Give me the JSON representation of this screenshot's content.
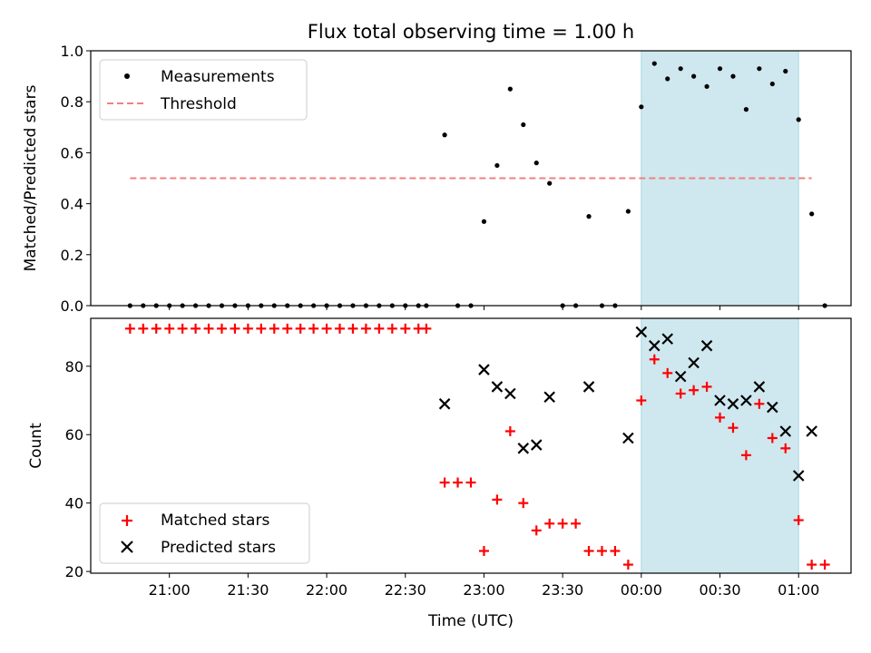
{
  "chart_data": [
    {
      "type": "scatter",
      "title": "Flux total observing time = 1.00 h",
      "ylabel": "Matched/Predicted stars",
      "xlabel": "",
      "ylim": [
        0,
        1.0
      ],
      "yticks": [
        "0.0",
        "0.2",
        "0.4",
        "0.6",
        "0.8",
        "1.0"
      ],
      "legend_position": "upper-left",
      "grid": false,
      "shaded_interval": [
        "00:00",
        "01:00"
      ],
      "shaded_color": "#cfe8ef",
      "series": [
        {
          "name": "Measurements",
          "marker": "dot",
          "color": "#000000",
          "points": [
            [
              "20:45",
              0.0
            ],
            [
              "20:50",
              0.0
            ],
            [
              "20:55",
              0.0
            ],
            [
              "21:00",
              0.0
            ],
            [
              "21:05",
              0.0
            ],
            [
              "21:10",
              0.0
            ],
            [
              "21:15",
              0.0
            ],
            [
              "21:20",
              0.0
            ],
            [
              "21:25",
              0.0
            ],
            [
              "21:30",
              0.0
            ],
            [
              "21:35",
              0.0
            ],
            [
              "21:40",
              0.0
            ],
            [
              "21:45",
              0.0
            ],
            [
              "21:50",
              0.0
            ],
            [
              "21:55",
              0.0
            ],
            [
              "22:00",
              0.0
            ],
            [
              "22:05",
              0.0
            ],
            [
              "22:10",
              0.0
            ],
            [
              "22:15",
              0.0
            ],
            [
              "22:20",
              0.0
            ],
            [
              "22:25",
              0.0
            ],
            [
              "22:30",
              0.0
            ],
            [
              "22:35",
              0.0
            ],
            [
              "22:38",
              0.0
            ],
            [
              "22:45",
              0.67
            ],
            [
              "22:50",
              0.0
            ],
            [
              "22:55",
              0.0
            ],
            [
              "23:00",
              0.33
            ],
            [
              "23:05",
              0.55
            ],
            [
              "23:10",
              0.85
            ],
            [
              "23:15",
              0.71
            ],
            [
              "23:20",
              0.56
            ],
            [
              "23:25",
              0.48
            ],
            [
              "23:30",
              0.0
            ],
            [
              "23:35",
              0.0
            ],
            [
              "23:40",
              0.35
            ],
            [
              "23:45",
              0.0
            ],
            [
              "23:50",
              0.0
            ],
            [
              "23:55",
              0.37
            ],
            [
              "00:00",
              0.78
            ],
            [
              "00:05",
              0.95
            ],
            [
              "00:10",
              0.89
            ],
            [
              "00:15",
              0.93
            ],
            [
              "00:20",
              0.9
            ],
            [
              "00:25",
              0.86
            ],
            [
              "00:30",
              0.93
            ],
            [
              "00:35",
              0.9
            ],
            [
              "00:40",
              0.77
            ],
            [
              "00:45",
              0.93
            ],
            [
              "00:50",
              0.87
            ],
            [
              "00:55",
              0.92
            ],
            [
              "01:00",
              0.73
            ],
            [
              "01:05",
              0.36
            ],
            [
              "01:10",
              0.0
            ]
          ]
        },
        {
          "name": "Threshold",
          "marker": "dashed-line",
          "color": "#f08080",
          "x": [
            "20:45",
            "01:05"
          ],
          "values": [
            0.5,
            0.5
          ]
        }
      ]
    },
    {
      "type": "scatter",
      "title": "",
      "ylabel": "Count",
      "xlabel": "Time (UTC)",
      "ylim": [
        19.5,
        94
      ],
      "yticks": [
        "20",
        "40",
        "60",
        "80"
      ],
      "xticks": [
        "21:00",
        "21:30",
        "22:00",
        "22:30",
        "23:00",
        "23:30",
        "00:00",
        "00:30",
        "01:00"
      ],
      "xlim": [
        "20:30",
        "01:20"
      ],
      "legend_position": "lower-left",
      "grid": false,
      "shaded_interval": [
        "00:00",
        "01:00"
      ],
      "shaded_color": "#cfe8ef",
      "series": [
        {
          "name": "Matched stars",
          "marker": "plus",
          "color": "#ff0000",
          "points": [
            [
              "20:45",
              91
            ],
            [
              "20:50",
              91
            ],
            [
              "20:55",
              91
            ],
            [
              "21:00",
              91
            ],
            [
              "21:05",
              91
            ],
            [
              "21:10",
              91
            ],
            [
              "21:15",
              91
            ],
            [
              "21:20",
              91
            ],
            [
              "21:25",
              91
            ],
            [
              "21:30",
              91
            ],
            [
              "21:35",
              91
            ],
            [
              "21:40",
              91
            ],
            [
              "21:45",
              91
            ],
            [
              "21:50",
              91
            ],
            [
              "21:55",
              91
            ],
            [
              "22:00",
              91
            ],
            [
              "22:05",
              91
            ],
            [
              "22:10",
              91
            ],
            [
              "22:15",
              91
            ],
            [
              "22:20",
              91
            ],
            [
              "22:25",
              91
            ],
            [
              "22:30",
              91
            ],
            [
              "22:35",
              91
            ],
            [
              "22:38",
              91
            ],
            [
              "22:45",
              46
            ],
            [
              "22:50",
              46
            ],
            [
              "22:55",
              46
            ],
            [
              "23:00",
              26
            ],
            [
              "23:05",
              41
            ],
            [
              "23:10",
              61
            ],
            [
              "23:15",
              40
            ],
            [
              "23:20",
              32
            ],
            [
              "23:25",
              34
            ],
            [
              "23:30",
              34
            ],
            [
              "23:35",
              34
            ],
            [
              "23:40",
              26
            ],
            [
              "23:45",
              26
            ],
            [
              "23:50",
              26
            ],
            [
              "23:55",
              22
            ],
            [
              "00:00",
              70
            ],
            [
              "00:05",
              82
            ],
            [
              "00:10",
              78
            ],
            [
              "00:15",
              72
            ],
            [
              "00:20",
              73
            ],
            [
              "00:25",
              74
            ],
            [
              "00:30",
              65
            ],
            [
              "00:35",
              62
            ],
            [
              "00:40",
              54
            ],
            [
              "00:45",
              69
            ],
            [
              "00:50",
              59
            ],
            [
              "00:55",
              56
            ],
            [
              "01:00",
              35
            ],
            [
              "01:05",
              22
            ],
            [
              "01:10",
              22
            ]
          ]
        },
        {
          "name": "Predicted stars",
          "marker": "x",
          "color": "#000000",
          "points": [
            [
              "22:45",
              69
            ],
            [
              "23:00",
              79
            ],
            [
              "23:05",
              74
            ],
            [
              "23:10",
              72
            ],
            [
              "23:15",
              56
            ],
            [
              "23:20",
              57
            ],
            [
              "23:25",
              71
            ],
            [
              "23:40",
              74
            ],
            [
              "23:55",
              59
            ],
            [
              "00:00",
              90
            ],
            [
              "00:05",
              86
            ],
            [
              "00:10",
              88
            ],
            [
              "00:15",
              77
            ],
            [
              "00:20",
              81
            ],
            [
              "00:25",
              86
            ],
            [
              "00:30",
              70
            ],
            [
              "00:35",
              69
            ],
            [
              "00:40",
              70
            ],
            [
              "00:45",
              74
            ],
            [
              "00:50",
              68
            ],
            [
              "00:55",
              61
            ],
            [
              "01:00",
              48
            ],
            [
              "01:05",
              61
            ]
          ]
        }
      ]
    }
  ]
}
